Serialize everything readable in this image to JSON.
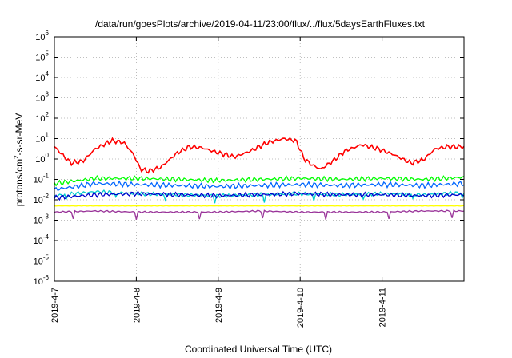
{
  "chart_data": {
    "type": "line",
    "title": "/data/run/goesPlots/archive/2019-04-11/23:00/flux/../flux/5daysEarthFluxes.txt",
    "xlabel": "Coordinated Universal Time (UTC)",
    "ylabel": {
      "prefix": "protons/cm",
      "exponent": "2",
      "suffix": "-s-sr-MeV"
    },
    "yscale": "log",
    "ylim": [
      -6,
      6
    ],
    "y_tick_exponents": [
      6,
      5,
      4,
      3,
      2,
      1,
      0,
      -1,
      -2,
      -3,
      -4,
      -5,
      -6
    ],
    "y_tick_base": "10",
    "xlim": [
      "2019-04-07",
      "2019-04-12"
    ],
    "x_ticks": [
      "2019-4-7",
      "2019-4-8",
      "2019-4-9",
      "2019-4-10",
      "2019-4-11"
    ],
    "grid": true,
    "colors": {
      "red": "#ff0000",
      "green": "#00ff00",
      "cyan": "#00cccc",
      "blue": "#0066ff",
      "darkblue": "#0000cc",
      "yellow": "#ffff00",
      "purple": "#993399"
    },
    "series": [
      {
        "color": "red",
        "x_days": [
          0,
          0.1,
          0.2,
          0.35,
          0.5,
          0.7,
          0.85,
          0.97,
          1.05,
          1.15,
          1.3,
          1.5,
          1.65,
          1.8,
          2.0,
          2.2,
          2.4,
          2.6,
          2.8,
          2.95,
          3.05,
          3.15,
          3.25,
          3.4,
          3.55,
          3.75,
          3.95,
          4.15,
          4.35,
          4.5,
          4.65,
          4.8,
          5.0
        ],
        "log10_values": [
          0.6,
          0.2,
          -0.2,
          -0.1,
          0.5,
          0.9,
          0.8,
          0.2,
          -0.5,
          -0.6,
          -0.4,
          0.3,
          0.6,
          0.55,
          0.3,
          0.1,
          0.4,
          0.8,
          1.0,
          0.9,
          0.0,
          -0.3,
          -0.5,
          -0.1,
          0.4,
          0.7,
          0.5,
          0.2,
          -0.2,
          -0.05,
          0.5,
          0.6,
          0.6
        ]
      },
      {
        "color": "green",
        "x_days": [
          0,
          0.5,
          1.0,
          1.5,
          2.0,
          2.5,
          3.0,
          3.5,
          4.0,
          4.5,
          5.0
        ],
        "log10_values": [
          -1.2,
          -0.95,
          -0.95,
          -1.0,
          -1.05,
          -1.0,
          -0.95,
          -1.0,
          -0.95,
          -1.0,
          -0.9
        ]
      },
      {
        "color": "blue",
        "x_days": [
          0,
          0.5,
          1.0,
          1.5,
          2.0,
          2.5,
          3.0,
          3.5,
          4.0,
          4.5,
          5.0
        ],
        "log10_values": [
          -1.5,
          -1.2,
          -1.25,
          -1.3,
          -1.35,
          -1.3,
          -1.25,
          -1.3,
          -1.25,
          -1.3,
          -1.2
        ]
      },
      {
        "color": "cyan",
        "x_days": [
          0,
          0.5,
          1.0,
          1.5,
          2.0,
          2.5,
          3.0,
          3.5,
          4.0,
          4.5,
          5.0
        ],
        "log10_values": [
          -1.8,
          -1.6,
          -1.7,
          -1.75,
          -1.8,
          -1.75,
          -1.7,
          -1.75,
          -1.7,
          -1.75,
          -1.65
        ]
      },
      {
        "color": "darkblue",
        "x_days": [
          0,
          0.5,
          1.0,
          1.5,
          2.0,
          2.5,
          3.0,
          3.5,
          4.0,
          4.5,
          5.0
        ],
        "log10_values": [
          -1.9,
          -1.75,
          -1.7,
          -1.75,
          -1.8,
          -1.75,
          -1.7,
          -1.75,
          -1.75,
          -1.8,
          -1.75
        ]
      },
      {
        "color": "yellow",
        "x_days": [
          0,
          1.0,
          2.0,
          3.0,
          4.0,
          5.0
        ],
        "log10_values": [
          -2.3,
          -2.3,
          -2.3,
          -2.3,
          -2.3,
          -2.3
        ]
      },
      {
        "color": "purple",
        "x_days": [
          0,
          0.5,
          1.0,
          1.5,
          2.0,
          2.5,
          3.0,
          3.5,
          4.0,
          4.5,
          5.0
        ],
        "log10_values": [
          -2.6,
          -2.55,
          -2.6,
          -2.6,
          -2.6,
          -2.55,
          -2.6,
          -2.6,
          -2.6,
          -2.55,
          -2.55
        ]
      }
    ]
  }
}
